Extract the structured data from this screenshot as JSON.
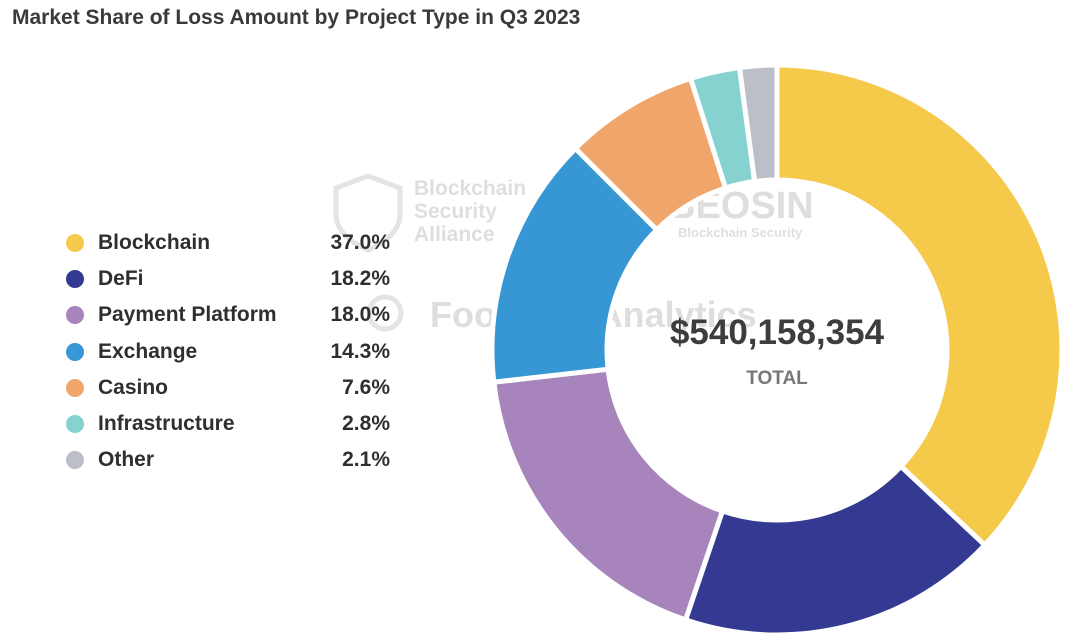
{
  "title": "Market Share of Loss Amount by Project Type in Q3 2023",
  "chart_data": {
    "type": "pie",
    "variant": "donut",
    "title": "Market Share of Loss Amount by Project Type in Q3 2023",
    "center_value": "$540,158,354",
    "center_label": "TOTAL",
    "legend_position": "left",
    "series": [
      {
        "name": "Blockchain",
        "value": 37.0,
        "label": "37.0%",
        "color": "#f5c94a"
      },
      {
        "name": "DeFi",
        "value": 18.2,
        "label": "18.2%",
        "color": "#343a92"
      },
      {
        "name": "Payment Platform",
        "value": 18.0,
        "label": "18.0%",
        "color": "#a884bd"
      },
      {
        "name": "Exchange",
        "value": 14.3,
        "label": "14.3%",
        "color": "#3796d4"
      },
      {
        "name": "Casino",
        "value": 7.6,
        "label": "7.6%",
        "color": "#f0a56a"
      },
      {
        "name": "Infrastructure",
        "value": 2.8,
        "label": "2.8%",
        "color": "#86d2d0"
      },
      {
        "name": "Other",
        "value": 2.1,
        "label": "2.1%",
        "color": "#bcbfc8"
      }
    ]
  },
  "watermarks": {
    "bsa_line1": "Blockchain",
    "bsa_line2": "Security",
    "bsa_line3": "Alliance",
    "beosin_name": "BEOSIN",
    "beosin_sub": "Blockchain Security",
    "footprint": "Footprint Analytics"
  }
}
